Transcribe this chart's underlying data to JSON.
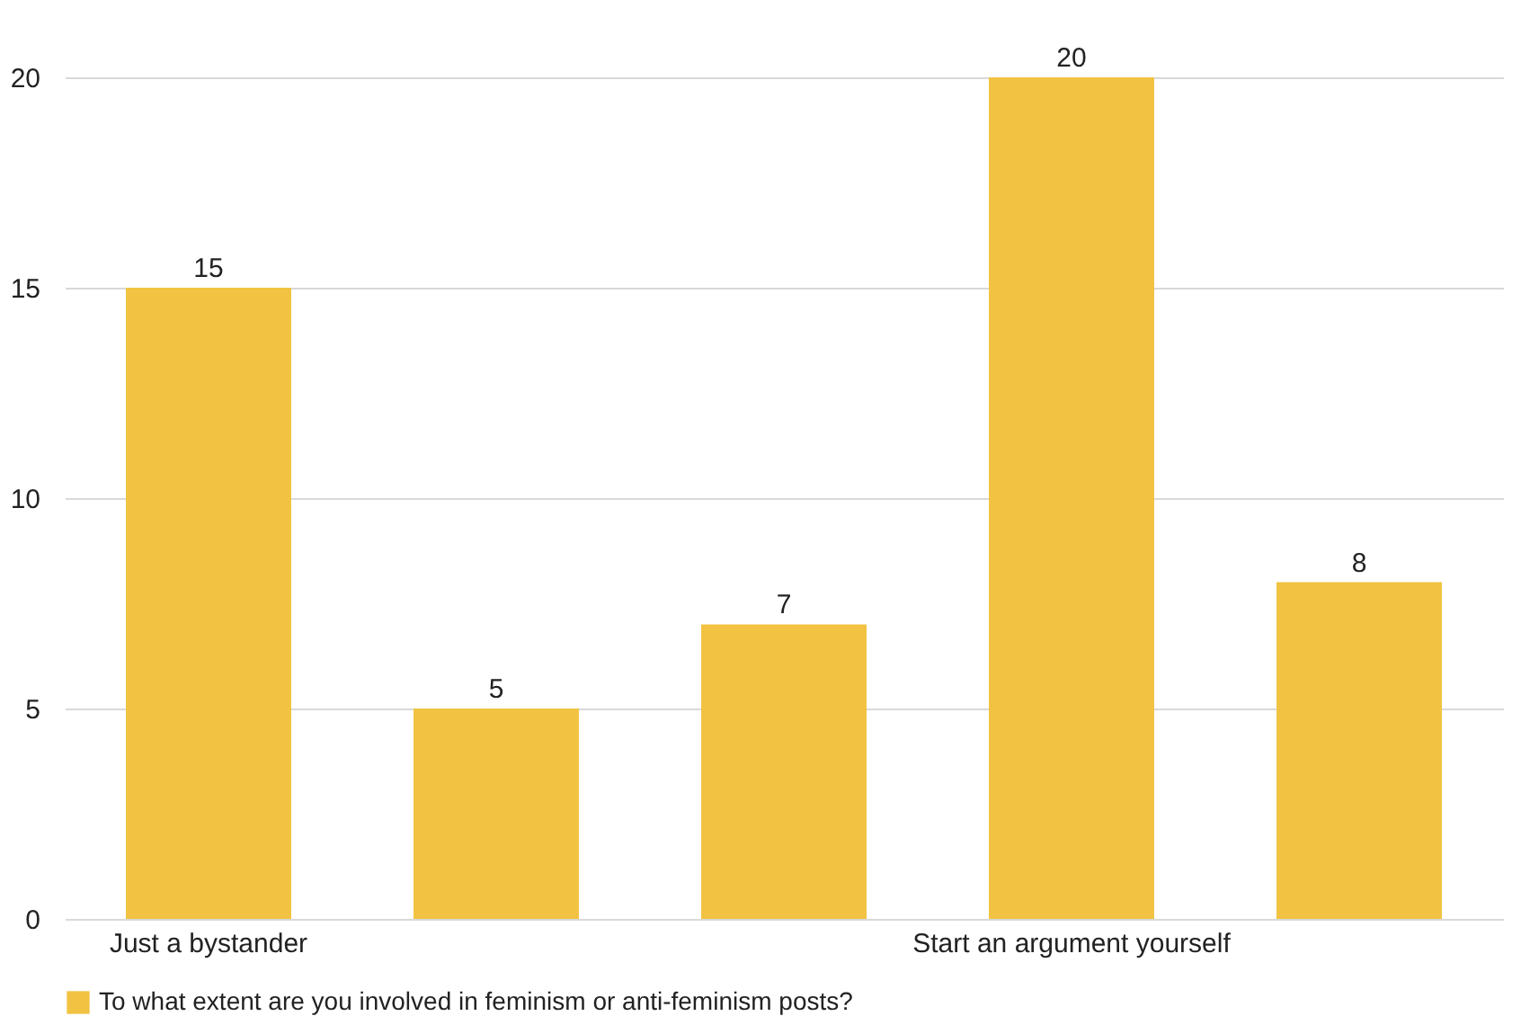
{
  "chart_data": {
    "type": "bar",
    "categories": [
      "Just a bystander",
      null,
      null,
      "Start an argument yourself",
      null
    ],
    "series": [
      {
        "name": "To what extent are you involved in feminism or anti-feminism posts?",
        "color": "#f2c342",
        "values": [
          15,
          5,
          7,
          20,
          8
        ]
      }
    ],
    "ylim": [
      0,
      20
    ],
    "yticks": [
      0,
      5,
      10,
      15,
      20
    ],
    "grid": "y",
    "legend": "bottom",
    "data_labels": true
  }
}
